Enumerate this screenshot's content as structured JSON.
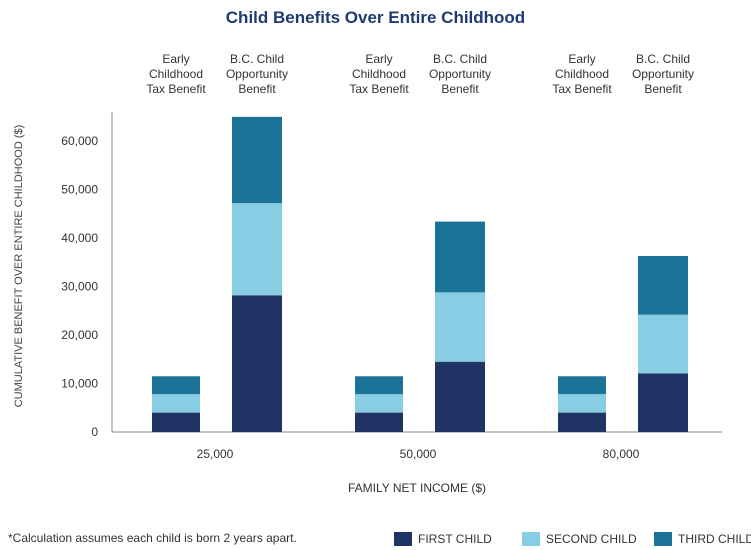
{
  "chart_data": {
    "type": "bar",
    "title": "Child Benefits Over Entire Childhood",
    "xlabel": "FAMILY NET INCOME ($)",
    "ylabel": "CUMULATIVE BENEFIT OVER ENTIRE CHILDHOOD ($)",
    "ylim": [
      0,
      66000
    ],
    "yticks": [
      "0",
      "10,000",
      "20,000",
      "30,000",
      "40,000",
      "50,000",
      "60,000"
    ],
    "ytick_values": [
      0,
      10000,
      20000,
      30000,
      40000,
      50000,
      60000
    ],
    "categories": [
      "25,000",
      "50,000",
      "80,000"
    ],
    "bar_labels": [
      "Early Childhood Tax Benefit",
      "B.C. Child Opportunity Benefit"
    ],
    "bar_label_lines": [
      [
        "Early",
        "Childhood",
        "Tax Benefit"
      ],
      [
        "B.C. Child",
        "Opportunity",
        "Benefit"
      ]
    ],
    "grid": false,
    "stacked": true,
    "series": [
      {
        "name": "FIRST CHILD",
        "color": "#1f3464",
        "values": [
          [
            4000,
            28200
          ],
          [
            4000,
            14500
          ],
          [
            4000,
            12100
          ]
        ]
      },
      {
        "name": "SECOND CHILD",
        "color": "#87cde3",
        "values": [
          [
            3800,
            19000
          ],
          [
            3800,
            14300
          ],
          [
            3800,
            12100
          ]
        ]
      },
      {
        "name": "THIRD CHILD",
        "color": "#1b7498",
        "values": [
          [
            3700,
            17800
          ],
          [
            3700,
            14600
          ],
          [
            3700,
            12100
          ]
        ]
      }
    ]
  },
  "footnote": "*Calculation assumes each child is born 2 years apart."
}
